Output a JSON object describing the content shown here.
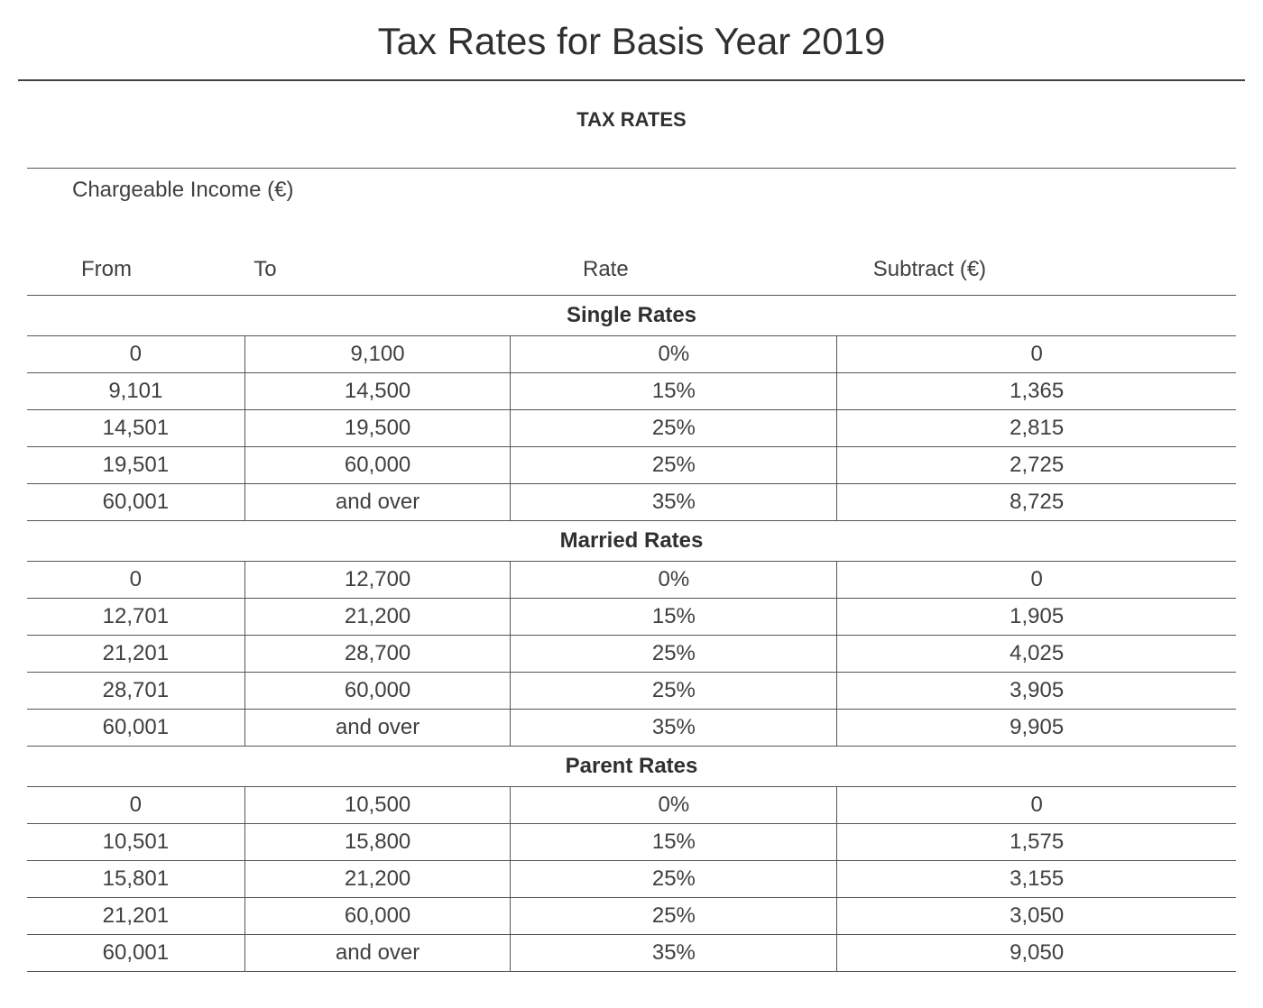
{
  "title": "Tax Rates for Basis Year 2019",
  "subtitle": "TAX RATES",
  "chargeable_label": "Chargeable Income (€)",
  "columns": {
    "from": "From",
    "to": "To",
    "rate": "Rate",
    "subtract": "Subtract (€)"
  },
  "styling": {
    "background_color": "#ffffff",
    "text_color": "#333333",
    "border_color": "#555555",
    "title_fontsize": 42,
    "subtitle_fontsize": 22,
    "cell_fontsize": 24,
    "column_widths_percent": [
      18,
      22,
      27,
      33
    ],
    "font_family": "Arial"
  },
  "sections": [
    {
      "label": "Single Rates",
      "rows": [
        {
          "from": "0",
          "to": "9,100",
          "rate": "0%",
          "subtract": "0"
        },
        {
          "from": "9,101",
          "to": "14,500",
          "rate": "15%",
          "subtract": "1,365"
        },
        {
          "from": "14,501",
          "to": "19,500",
          "rate": "25%",
          "subtract": "2,815"
        },
        {
          "from": "19,501",
          "to": "60,000",
          "rate": "25%",
          "subtract": "2,725"
        },
        {
          "from": "60,001",
          "to": "and over",
          "rate": "35%",
          "subtract": "8,725"
        }
      ]
    },
    {
      "label": "Married Rates",
      "rows": [
        {
          "from": "0",
          "to": "12,700",
          "rate": "0%",
          "subtract": "0"
        },
        {
          "from": "12,701",
          "to": "21,200",
          "rate": "15%",
          "subtract": "1,905"
        },
        {
          "from": "21,201",
          "to": "28,700",
          "rate": "25%",
          "subtract": "4,025"
        },
        {
          "from": "28,701",
          "to": "60,000",
          "rate": "25%",
          "subtract": "3,905"
        },
        {
          "from": "60,001",
          "to": "and over",
          "rate": "35%",
          "subtract": "9,905"
        }
      ]
    },
    {
      "label": "Parent Rates",
      "rows": [
        {
          "from": "0",
          "to": "10,500",
          "rate": "0%",
          "subtract": "0"
        },
        {
          "from": "10,501",
          "to": "15,800",
          "rate": "15%",
          "subtract": "1,575"
        },
        {
          "from": "15,801",
          "to": "21,200",
          "rate": "25%",
          "subtract": "3,155"
        },
        {
          "from": "21,201",
          "to": "60,000",
          "rate": "25%",
          "subtract": "3,050"
        },
        {
          "from": "60,001",
          "to": "and over",
          "rate": "35%",
          "subtract": "9,050"
        }
      ]
    }
  ]
}
